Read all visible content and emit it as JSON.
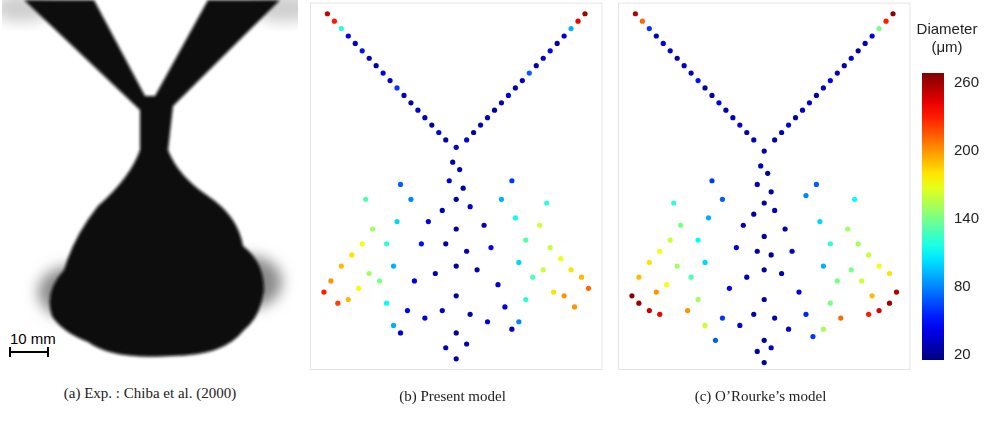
{
  "photo": {
    "caption": "(a) Exp. : Chiba et al. (2000)",
    "scale_bar": {
      "length": 10,
      "label": "10 mm"
    }
  },
  "colorbar": {
    "title": "Diameter (μm)",
    "range": [
      15,
      268
    ],
    "ticks": [
      20,
      80,
      140,
      200,
      260
    ]
  },
  "chart_data": [
    {
      "type": "scatter",
      "title": "(b) Present model",
      "xlim": [
        -42,
        42
      ],
      "ylim": [
        -96,
        3
      ],
      "grid": false,
      "tick_labels": false,
      "x": [
        -37,
        -35,
        -33,
        -31,
        -29,
        -27,
        -25,
        -23,
        -21,
        -19,
        -17,
        -15,
        -13,
        -11,
        -9,
        -7,
        -5,
        -3,
        37,
        35,
        33,
        31,
        29,
        27,
        25,
        23,
        21,
        19,
        17,
        15,
        13,
        11,
        9,
        7,
        5,
        3,
        0,
        -1,
        1,
        -2,
        2,
        -13,
        13,
        -17,
        17,
        -20,
        20,
        -18,
        18,
        -22,
        22,
        -20,
        20,
        -18,
        18,
        -24,
        24,
        -27,
        27,
        -30,
        30,
        -33,
        33,
        -36,
        36,
        -25,
        25,
        -28,
        28,
        -31,
        31,
        -38,
        38,
        -34,
        34,
        -26,
        26,
        -16,
        16,
        0,
        -4,
        4,
        -8,
        8,
        0,
        -3,
        3,
        -10,
        10,
        0,
        -6,
        6,
        -12,
        12,
        0,
        -4,
        4,
        -9,
        9,
        0,
        -3,
        3,
        0,
        -14,
        14,
        -16,
        16
      ],
      "y": [
        0,
        -2,
        -4,
        -6,
        -8,
        -10,
        -12,
        -14,
        -16,
        -18,
        -20,
        -22,
        -24,
        -26,
        -28,
        -30,
        -32,
        -34,
        0,
        -2,
        -4,
        -6,
        -8,
        -10,
        -12,
        -14,
        -16,
        -18,
        -20,
        -22,
        -24,
        -26,
        -28,
        -30,
        -32,
        -34,
        -36,
        -40,
        -42,
        -45,
        -47,
        -50,
        -50,
        -56,
        -55,
        -62,
        -61,
        -68,
        -67,
        -72,
        -71,
        -78,
        -77,
        -84,
        -83,
        -58,
        -57,
        -62,
        -63,
        -65,
        -66,
        -68,
        -69,
        -72,
        -71,
        -70,
        -69,
        -74,
        -75,
        -77,
        -76,
        -75,
        -74,
        -78,
        -79,
        -50,
        -51,
        -46,
        -45,
        -50,
        -53,
        -52,
        -56,
        -57,
        -58,
        -62,
        -64,
        -62,
        -63,
        -68,
        -70,
        -69,
        -72,
        -73,
        -76,
        -80,
        -81,
        -82,
        -83,
        -86,
        -90,
        -89,
        -93,
        -80,
        -79,
        -86,
        -85
      ],
      "diameter": [
        250,
        230,
        120,
        40,
        30,
        50,
        30,
        25,
        40,
        30,
        60,
        30,
        25,
        35,
        30,
        25,
        40,
        30,
        260,
        240,
        90,
        35,
        25,
        45,
        30,
        30,
        70,
        30,
        25,
        40,
        30,
        25,
        35,
        30,
        25,
        40,
        30,
        25,
        30,
        35,
        25,
        80,
        90,
        100,
        110,
        120,
        130,
        90,
        100,
        140,
        130,
        110,
        120,
        90,
        80,
        150,
        160,
        170,
        160,
        180,
        170,
        190,
        180,
        200,
        190,
        150,
        160,
        170,
        180,
        190,
        200,
        230,
        210,
        220,
        200,
        130,
        120,
        70,
        60,
        25,
        30,
        35,
        40,
        30,
        20,
        25,
        30,
        50,
        45,
        20,
        30,
        25,
        40,
        35,
        25,
        30,
        25,
        35,
        40,
        20,
        30,
        25,
        20,
        45,
        40,
        35,
        30
      ]
    },
    {
      "type": "scatter",
      "title": "(c) O’Rourke’s model",
      "xlim": [
        -42,
        42
      ],
      "ylim": [
        -96,
        3
      ],
      "grid": false,
      "tick_labels": false,
      "x": [
        -37,
        -35,
        -33,
        -31,
        -29,
        -27,
        -25,
        -23,
        -21,
        -19,
        -17,
        -15,
        -13,
        -11,
        -9,
        -7,
        -5,
        -3,
        37,
        35,
        33,
        31,
        29,
        27,
        25,
        23,
        21,
        19,
        17,
        15,
        13,
        11,
        9,
        7,
        5,
        3,
        0,
        -1,
        1,
        -2,
        2,
        -12,
        12,
        -16,
        16,
        -19,
        19,
        -17,
        17,
        -21,
        21,
        -19,
        19,
        -17,
        17,
        -22,
        22,
        -24,
        24,
        -27,
        27,
        -30,
        30,
        -33,
        33,
        -36,
        36,
        -25,
        25,
        -28,
        28,
        -31,
        31,
        -36,
        -33,
        -30,
        -38,
        36,
        33,
        30,
        38,
        -26,
        26,
        -15,
        15,
        0,
        -3,
        3,
        -6,
        6,
        0,
        -2,
        2,
        -8,
        8,
        0,
        -5,
        5,
        -10,
        10,
        0,
        -3,
        3,
        -7,
        7,
        0,
        -2,
        2,
        0,
        -12,
        12,
        -14,
        14
      ],
      "y": [
        0,
        -2,
        -4,
        -6,
        -8,
        -10,
        -12,
        -14,
        -16,
        -18,
        -20,
        -22,
        -24,
        -26,
        -28,
        -30,
        -32,
        -34,
        0,
        -2,
        -4,
        -6,
        -8,
        -10,
        -12,
        -14,
        -16,
        -18,
        -20,
        -22,
        -24,
        -26,
        -28,
        -30,
        -32,
        -34,
        -37,
        -41,
        -43,
        -46,
        -48,
        -50,
        -49,
        -55,
        -56,
        -61,
        -62,
        -67,
        -68,
        -71,
        -72,
        -77,
        -78,
        -84,
        -85,
        -80,
        -82,
        -57,
        -58,
        -61,
        -62,
        -64,
        -65,
        -67,
        -68,
        -71,
        -70,
        -68,
        -69,
        -73,
        -72,
        -75,
        -76,
        -78,
        -80,
        -81,
        -76,
        -78,
        -80,
        -81,
        -75,
        -51,
        -50,
        -45,
        -46,
        -51,
        -54,
        -53,
        -57,
        -58,
        -60,
        -64,
        -65,
        -63,
        -64,
        -69,
        -71,
        -70,
        -74,
        -75,
        -77,
        -81,
        -82,
        -84,
        -85,
        -88,
        -91,
        -90,
        -94,
        -82,
        -81,
        -88,
        -87
      ],
      "diameter": [
        255,
        210,
        60,
        30,
        45,
        30,
        25,
        35,
        30,
        50,
        25,
        30,
        40,
        25,
        30,
        35,
        25,
        30,
        265,
        230,
        140,
        40,
        30,
        25,
        35,
        30,
        25,
        45,
        30,
        25,
        35,
        30,
        25,
        40,
        30,
        25,
        25,
        30,
        20,
        30,
        25,
        70,
        80,
        90,
        100,
        110,
        120,
        100,
        90,
        130,
        140,
        150,
        140,
        160,
        150,
        200,
        210,
        140,
        150,
        160,
        150,
        170,
        160,
        180,
        170,
        190,
        180,
        150,
        140,
        170,
        160,
        200,
        190,
        260,
        250,
        240,
        265,
        260,
        245,
        230,
        255,
        120,
        110,
        60,
        70,
        20,
        25,
        30,
        30,
        25,
        20,
        25,
        20,
        40,
        35,
        20,
        25,
        30,
        45,
        40,
        20,
        25,
        30,
        35,
        30,
        20,
        25,
        30,
        20,
        60,
        55,
        70,
        60
      ]
    }
  ]
}
